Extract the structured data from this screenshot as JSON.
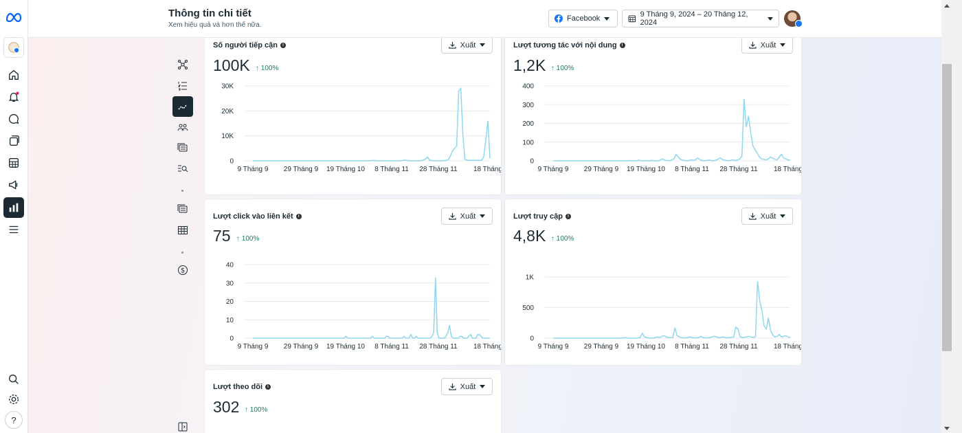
{
  "header": {
    "title": "Thông tin chi tiết",
    "subtitle": "Xem hiệu quả và hơn thế nữa.",
    "platform": "Facebook",
    "date_range": "9 Tháng 9, 2024 – 20 Tháng 12, 2024"
  },
  "export_label": "Xuất",
  "cards": [
    {
      "id": "reach",
      "title": "Số người tiếp cận",
      "value": "100K",
      "delta": "100%"
    },
    {
      "id": "interactions",
      "title": "Lượt tương tác với nội dung",
      "value": "1,2K",
      "delta": "100%"
    },
    {
      "id": "clicks",
      "title": "Lượt click vào liên kết",
      "value": "75",
      "delta": "100%"
    },
    {
      "id": "visits",
      "title": "Lượt truy cập",
      "value": "4,8K",
      "delta": "100%"
    },
    {
      "id": "follows",
      "title": "Lượt theo dõi",
      "value": "302",
      "delta": "100%"
    }
  ],
  "chart_data": [
    {
      "type": "line",
      "title": "Số người tiếp cận",
      "x_ticks": [
        "9 Tháng 9",
        "29 Tháng 9",
        "19 Tháng 10",
        "8 Tháng 11",
        "28 Tháng 11",
        "18 Tháng"
      ],
      "y_ticks": [
        "0",
        "10K",
        "20K",
        "30K"
      ],
      "ylim": [
        0,
        30000
      ],
      "color": "#8fd6ef",
      "series": [
        {
          "values": [
            0,
            0,
            0,
            0,
            0,
            0,
            0,
            0,
            0,
            0,
            0,
            0,
            0,
            0,
            0,
            0,
            0,
            0,
            0,
            0,
            0,
            0,
            0,
            0,
            0,
            0,
            0,
            0,
            0,
            0,
            0,
            0,
            0,
            0,
            0,
            0,
            0,
            0,
            0,
            0,
            0,
            0,
            0,
            0,
            0,
            0,
            0,
            0,
            0,
            0,
            0,
            0,
            0,
            0,
            0,
            0,
            0,
            100,
            200,
            100,
            0,
            0,
            0,
            0,
            0,
            0,
            0,
            0,
            0,
            0,
            0,
            0,
            100,
            300,
            200,
            100,
            0,
            0,
            0,
            0,
            0,
            100,
            300,
            800,
            1500,
            300,
            100,
            0,
            0,
            0,
            0,
            0,
            100,
            200,
            500,
            2000,
            4000,
            5000,
            6000,
            28000,
            29000,
            10000,
            500,
            300,
            200,
            200,
            200,
            200,
            200,
            200,
            200,
            1500,
            8000,
            16000,
            1000
          ]
        }
      ]
    },
    {
      "type": "line",
      "title": "Lượt tương tác với nội dung",
      "x_ticks": [
        "9 Tháng 9",
        "29 Tháng 9",
        "19 Tháng 10",
        "8 Tháng 11",
        "28 Tháng 11",
        "18 Tháng"
      ],
      "y_ticks": [
        "0",
        "100",
        "200",
        "300",
        "400"
      ],
      "ylim": [
        0,
        400
      ],
      "color": "#8fd6ef",
      "series": [
        {
          "values": [
            0,
            0,
            0,
            0,
            0,
            0,
            0,
            0,
            0,
            0,
            0,
            0,
            0,
            0,
            0,
            0,
            0,
            0,
            0,
            0,
            0,
            0,
            0,
            0,
            0,
            0,
            0,
            0,
            0,
            0,
            0,
            0,
            0,
            0,
            0,
            2,
            0,
            0,
            0,
            4,
            0,
            0,
            2,
            0,
            0,
            3,
            0,
            0,
            0,
            6,
            10,
            3,
            2,
            0,
            5,
            10,
            35,
            20,
            8,
            4,
            2,
            0,
            3,
            5,
            2,
            8,
            15,
            5,
            2,
            0,
            2,
            4,
            2,
            0,
            3,
            8,
            15,
            8,
            4,
            2,
            0,
            3,
            6,
            2,
            4,
            10,
            25,
            330,
            180,
            240,
            150,
            80,
            60,
            40,
            20,
            10,
            8,
            5,
            10,
            20,
            15,
            8,
            5,
            20,
            35,
            15,
            10,
            5,
            3
          ]
        }
      ]
    },
    {
      "type": "line",
      "title": "Lượt click vào liên kết",
      "x_ticks": [
        "9 Tháng 9",
        "29 Tháng 9",
        "19 Tháng 10",
        "8 Tháng 11",
        "28 Tháng 11",
        "18 Tháng"
      ],
      "y_ticks": [
        "0",
        "10",
        "20",
        "30",
        "40"
      ],
      "ylim": [
        0,
        40
      ],
      "color": "#8fd6ef",
      "series": [
        {
          "values": [
            0,
            0,
            0,
            0,
            0,
            0,
            0,
            0,
            0,
            0,
            0,
            0,
            0,
            0,
            0,
            0,
            0,
            0,
            0,
            0,
            0,
            0,
            0,
            0,
            0,
            0,
            0,
            0,
            0,
            0,
            0,
            0,
            0,
            0,
            0,
            0,
            0,
            0,
            0,
            0,
            0,
            0,
            0,
            0,
            0,
            0,
            0,
            0,
            0,
            0,
            0,
            0,
            0,
            1,
            0,
            0,
            0,
            0,
            0,
            0,
            0,
            0,
            0,
            0,
            0,
            0,
            0,
            0,
            1,
            0,
            0,
            0,
            0,
            0,
            0,
            0,
            1,
            1,
            0,
            0,
            0,
            0,
            0,
            0,
            0,
            0,
            1,
            0,
            0,
            0,
            2,
            0,
            0,
            1,
            0,
            0,
            0,
            0,
            0,
            0,
            0,
            0,
            1,
            3,
            33,
            3,
            0,
            0,
            0,
            0,
            1,
            3,
            7,
            1,
            0,
            0,
            0,
            0,
            1,
            1,
            0,
            0,
            0,
            1,
            2,
            0,
            0,
            0,
            2,
            2,
            1,
            0,
            0,
            0,
            0,
            0
          ]
        }
      ]
    },
    {
      "type": "line",
      "title": "Lượt truy cập",
      "x_ticks": [
        "9 Tháng 9",
        "29 Tháng 9",
        "19 Tháng 10",
        "8 Tháng 11",
        "28 Tháng 11",
        "18 Tháng"
      ],
      "y_ticks": [
        "0",
        "500",
        "1K"
      ],
      "ylim": [
        0,
        1200
      ],
      "color": "#8fd6ef",
      "series": [
        {
          "values": [
            0,
            0,
            0,
            0,
            0,
            0,
            0,
            0,
            0,
            0,
            0,
            0,
            0,
            0,
            0,
            0,
            0,
            0,
            0,
            0,
            0,
            0,
            0,
            0,
            0,
            0,
            0,
            0,
            0,
            0,
            0,
            0,
            5,
            10,
            5,
            0,
            0,
            0,
            0,
            5,
            10,
            80,
            20,
            10,
            5,
            0,
            0,
            10,
            20,
            10,
            30,
            40,
            20,
            10,
            10,
            10,
            170,
            40,
            20,
            10,
            5,
            5,
            10,
            20,
            10,
            5,
            5,
            10,
            30,
            10,
            5,
            5,
            10,
            20,
            30,
            20,
            10,
            10,
            20,
            15,
            5,
            10,
            15,
            20,
            180,
            150,
            20,
            10,
            15,
            20,
            30,
            20,
            10,
            20,
            930,
            600,
            450,
            200,
            150,
            330,
            120,
            50,
            20,
            30,
            60,
            20,
            30,
            40,
            20,
            10
          ]
        }
      ]
    },
    {
      "type": "line",
      "title": "Lượt theo dõi",
      "x_ticks": [],
      "y_ticks": [],
      "series": []
    }
  ]
}
